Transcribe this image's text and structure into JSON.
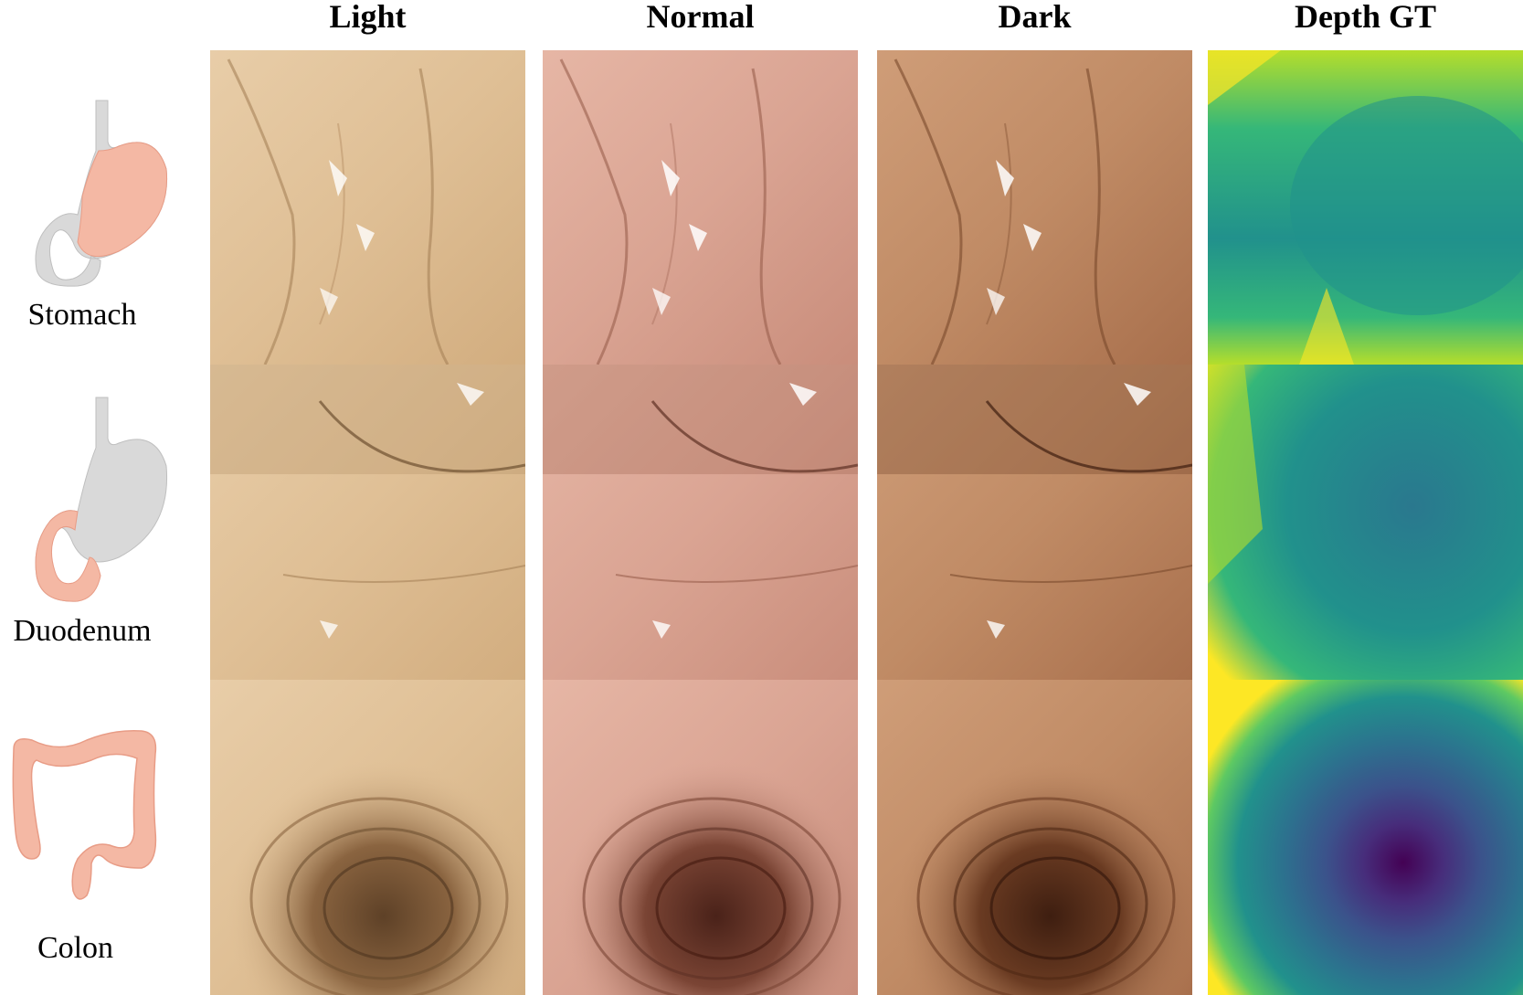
{
  "columns": [
    {
      "key": "light",
      "label": "Light"
    },
    {
      "key": "normal",
      "label": "Normal"
    },
    {
      "key": "dark",
      "label": "Dark"
    },
    {
      "key": "depth",
      "label": "Depth GT"
    }
  ],
  "rows": [
    {
      "key": "stomach",
      "label": "Stomach",
      "organ_icon": "stomach-icon"
    },
    {
      "key": "duodenum",
      "label": "Duodenum",
      "organ_icon": "duodenum-icon"
    },
    {
      "key": "colon",
      "label": "Colon",
      "organ_icon": "colon-icon"
    }
  ],
  "colors": {
    "light_tone": "#e2c39c",
    "normal_tone": "#dba898",
    "dark_tone": "#c58f69",
    "depth_near": "#fde725",
    "depth_mid": "#21918c",
    "depth_far": "#440154",
    "organ_highlight": "#f4b8a4",
    "organ_gray": "#d9d9d9"
  }
}
